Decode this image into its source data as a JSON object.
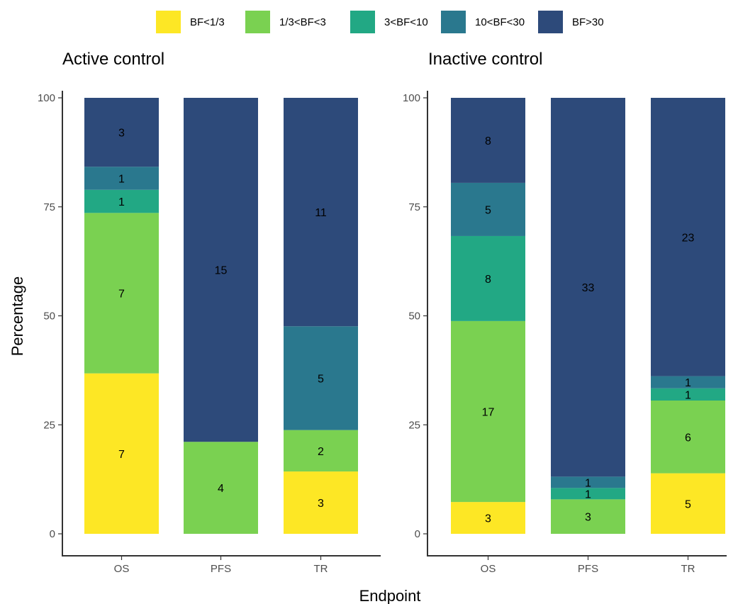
{
  "chart_data": {
    "type": "bar",
    "stacked": true,
    "xlabel": "Endpoint",
    "ylabel": "Percentage",
    "ylim": [
      0,
      100
    ],
    "yticks": [
      0,
      25,
      50,
      75,
      100
    ],
    "legend": {
      "position": "top",
      "entries": [
        {
          "label": "BF<1/3",
          "color": "#FDE725"
        },
        {
          "label": "1/3<BF<3",
          "color": "#7AD151"
        },
        {
          "label": "3<BF<10",
          "color": "#22A884"
        },
        {
          "label": "10<BF<30",
          "color": "#2A788E"
        },
        {
          "label": "BF>30",
          "color": "#2D4A7A"
        }
      ]
    },
    "panels": [
      {
        "title": "Active control",
        "categories": [
          "OS",
          "PFS",
          "TR"
        ],
        "bars": [
          {
            "category": "OS",
            "segments": [
              {
                "level": "BF<1/3",
                "count": 7,
                "percent": 36.8
              },
              {
                "level": "1/3<BF<3",
                "count": 7,
                "percent": 36.8
              },
              {
                "level": "3<BF<10",
                "count": 1,
                "percent": 5.3
              },
              {
                "level": "10<BF<30",
                "count": 1,
                "percent": 5.3
              },
              {
                "level": "BF>30",
                "count": 3,
                "percent": 15.8
              }
            ]
          },
          {
            "category": "PFS",
            "segments": [
              {
                "level": "1/3<BF<3",
                "count": 4,
                "percent": 21.1
              },
              {
                "level": "BF>30",
                "count": 15,
                "percent": 78.9
              }
            ]
          },
          {
            "category": "TR",
            "segments": [
              {
                "level": "BF<1/3",
                "count": 3,
                "percent": 14.3
              },
              {
                "level": "1/3<BF<3",
                "count": 2,
                "percent": 9.5
              },
              {
                "level": "10<BF<30",
                "count": 5,
                "percent": 23.8
              },
              {
                "level": "BF>30",
                "count": 11,
                "percent": 52.4
              }
            ]
          }
        ]
      },
      {
        "title": "Inactive control",
        "categories": [
          "OS",
          "PFS",
          "TR"
        ],
        "bars": [
          {
            "category": "OS",
            "segments": [
              {
                "level": "BF<1/3",
                "count": 3,
                "percent": 7.3
              },
              {
                "level": "1/3<BF<3",
                "count": 17,
                "percent": 41.5
              },
              {
                "level": "3<BF<10",
                "count": 8,
                "percent": 19.5
              },
              {
                "level": "10<BF<30",
                "count": 5,
                "percent": 12.2
              },
              {
                "level": "BF>30",
                "count": 8,
                "percent": 19.5
              }
            ]
          },
          {
            "category": "PFS",
            "segments": [
              {
                "level": "1/3<BF<3",
                "count": 3,
                "percent": 7.9
              },
              {
                "level": "3<BF<10",
                "count": 1,
                "percent": 2.6
              },
              {
                "level": "10<BF<30",
                "count": 1,
                "percent": 2.6
              },
              {
                "level": "BF>30",
                "count": 33,
                "percent": 86.8
              }
            ]
          },
          {
            "category": "TR",
            "segments": [
              {
                "level": "BF<1/3",
                "count": 5,
                "percent": 13.9
              },
              {
                "level": "1/3<BF<3",
                "count": 6,
                "percent": 16.7
              },
              {
                "level": "3<BF<10",
                "count": 1,
                "percent": 2.8
              },
              {
                "level": "10<BF<30",
                "count": 1,
                "percent": 2.8
              },
              {
                "level": "BF>30",
                "count": 23,
                "percent": 63.9
              }
            ]
          }
        ]
      }
    ]
  }
}
